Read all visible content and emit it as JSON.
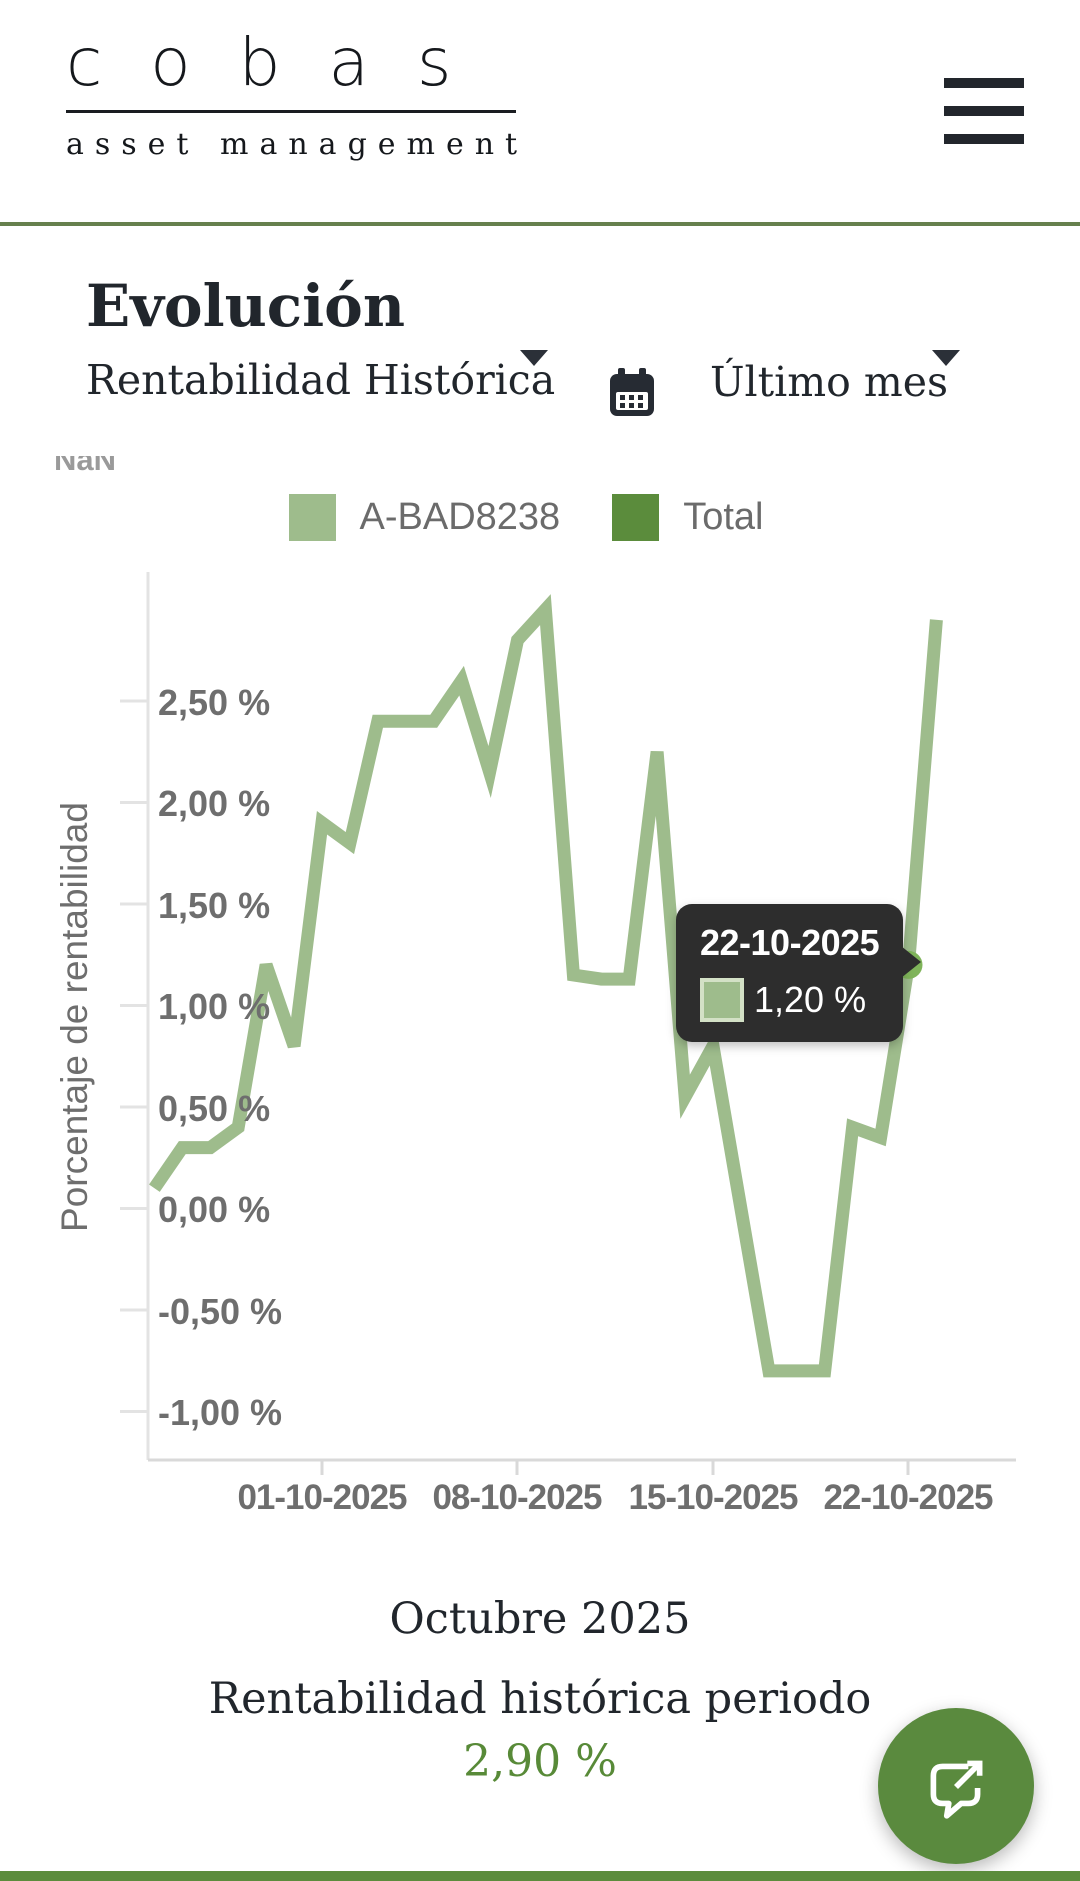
{
  "header": {
    "logo_main": "cobas",
    "logo_sub": "asset management",
    "menu_icon": "hamburger-menu"
  },
  "section": {
    "title": "Evolución",
    "metric_dropdown": "Rentabilidad Histórica",
    "period_dropdown": "Último mes"
  },
  "chart": {
    "nan_label": "NaN",
    "y_axis_title": "Porcentaje de rentabilidad",
    "y_ticks": [
      "2,50 %",
      "2,00 %",
      "1,50 %",
      "1,00 %",
      "0,50 %",
      "0,00 %",
      "-0,50 %",
      "-1,00 %"
    ],
    "x_ticks": [
      "01-10-2025",
      "08-10-2025",
      "15-10-2025",
      "22-10-2025"
    ],
    "legend": [
      {
        "label": "A-BAD8238",
        "color": "#9ebc8c"
      },
      {
        "label": "Total",
        "color": "#5b8c3c"
      }
    ],
    "tooltip": {
      "date": "22-10-2025",
      "value": "1,20 %"
    }
  },
  "chart_data": {
    "type": "line",
    "title": "",
    "xlabel": "Octubre 2025",
    "ylabel": "Porcentaje de rentabilidad",
    "ylim": [
      -1.25,
      3.15
    ],
    "grid": false,
    "legend_position": "top",
    "x_tick_labels": [
      "01-10-2025",
      "08-10-2025",
      "15-10-2025",
      "22-10-2025"
    ],
    "highlight": {
      "date": "22-10-2025",
      "value": 1.2,
      "value_label": "1,20 %"
    },
    "series": [
      {
        "name": "A-BAD8238",
        "color": "#9ebc8c",
        "dates": [
          "25-09-2025",
          "26-09-2025",
          "27-09-2025",
          "28-09-2025",
          "29-09-2025",
          "30-09-2025",
          "01-10-2025",
          "02-10-2025",
          "03-10-2025",
          "04-10-2025",
          "05-10-2025",
          "06-10-2025",
          "07-10-2025",
          "08-10-2025",
          "09-10-2025",
          "10-10-2025",
          "11-10-2025",
          "12-10-2025",
          "13-10-2025",
          "14-10-2025",
          "15-10-2025",
          "16-10-2025",
          "17-10-2025",
          "18-10-2025",
          "19-10-2025",
          "20-10-2025",
          "21-10-2025",
          "22-10-2025",
          "23-10-2025"
        ],
        "values": [
          0.1,
          0.3,
          0.3,
          0.4,
          1.2,
          0.8,
          1.9,
          1.8,
          2.4,
          2.4,
          2.4,
          2.6,
          2.15,
          2.8,
          2.95,
          1.15,
          1.13,
          1.13,
          2.25,
          0.55,
          0.8,
          0.0,
          -0.8,
          -0.8,
          -0.8,
          0.4,
          0.35,
          1.2,
          2.9
        ]
      }
    ]
  },
  "footer": {
    "month_label": "Octubre 2025",
    "period_label": "Rentabilidad histórica periodo",
    "period_value": "2,90 %"
  },
  "colors": {
    "accent_dark": "#5b8c3c",
    "accent_light": "#9ebc8c",
    "separator_green": "#66804d",
    "highlight_dot": "#7fb45a",
    "tooltip_bg": "#2d2d2d",
    "axis_text": "#6e6e6e",
    "heading_text": "#21262c"
  }
}
